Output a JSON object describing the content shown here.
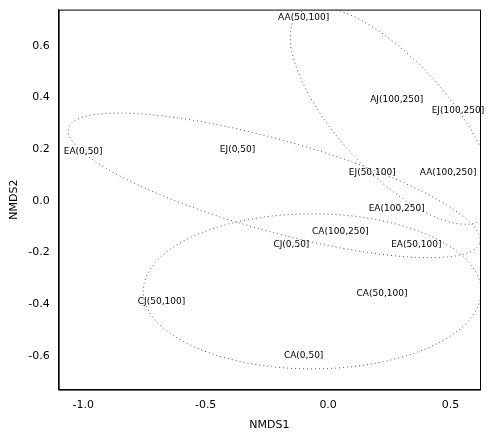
{
  "chart_data": {
    "type": "scatter",
    "x_label": "NMDS1",
    "y_label": "NMDS2",
    "marker": "none",
    "grid": false,
    "data_labels": true,
    "labels": [
      "AA(50,100]",
      "AJ(100,250]",
      "EJ(100,250]",
      "EA(0,50]",
      "EJ(0,50]",
      "EJ(50,100]",
      "AA(100,250]",
      "EA(100,250]",
      "CA(100,250]",
      "CJ(0,50]",
      "EA(50,100]",
      "CJ(50,100]",
      "CA(50,100]",
      "CA(0,50]"
    ],
    "x": [
      -0.1,
      0.28,
      0.53,
      -1.0,
      -0.37,
      0.18,
      0.49,
      0.28,
      0.05,
      -0.15,
      0.36,
      -0.68,
      0.22,
      -0.1
    ],
    "values": [
      0.71,
      0.39,
      0.35,
      0.19,
      0.2,
      0.11,
      0.11,
      -0.03,
      -0.12,
      -0.17,
      -0.17,
      -0.39,
      -0.36,
      -0.6
    ],
    "ellipses": [
      {
        "center": [
          0.26,
          0.33
        ],
        "u": [
          0.385,
          -0.39
        ],
        "v": [
          0.154,
          0.157
        ]
      },
      {
        "center": [
          -0.22,
          0.06
        ],
        "u": [
          0.84,
          -0.22
        ],
        "v": [
          0.042,
          0.173
        ]
      },
      {
        "center": [
          -0.065,
          -0.35
        ],
        "u": [
          0.69,
          0
        ],
        "v": [
          0,
          0.3
        ]
      }
    ],
    "color": "#000000",
    "ellipse_color": "#555555",
    "line_style": "dotted",
    "xlim": [
      -1.1,
      0.62
    ],
    "xticks": [
      {
        "value": -1,
        "label": "-1.0"
      },
      {
        "value": -0.5,
        "label": "-0.5"
      },
      {
        "value": 0,
        "label": "0.0"
      },
      {
        "value": 0.5,
        "label": "0.5"
      }
    ],
    "ylim": [
      -0.73,
      0.74
    ],
    "yticks": [
      -0.6,
      -0.4,
      -0.2,
      {
        "value": 0,
        "label": "0.0"
      },
      0.2,
      0.4,
      0.6
    ]
  }
}
